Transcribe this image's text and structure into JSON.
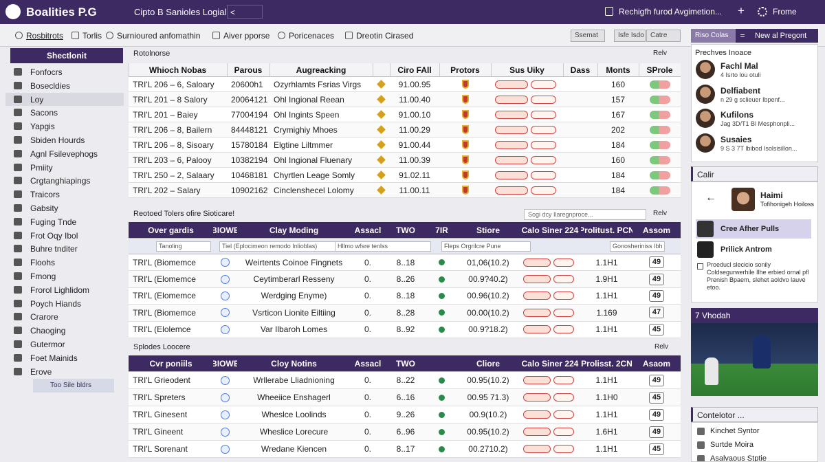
{
  "topbar": {
    "logo": "Boalities P.G",
    "title": "Cipto B Sanioles Logial",
    "search": "<",
    "notice": "Rechigfh furod Avgimetion...",
    "add": "+",
    "user": "Frome"
  },
  "tabs": [
    "Rosbitrots",
    "Torlis",
    "Surnioured anfomathin",
    "Aiver pporse",
    "Poricenaces",
    "Dreotin Cirased"
  ],
  "toolbar": [
    "Ssemat",
    "Isfe Isdo",
    "Catre"
  ],
  "sidebar": {
    "button": "Shectlonit",
    "items": [
      "Fonfocrs",
      "Bosecldies",
      "Loy",
      "Sacons",
      "Yapgis",
      "Sbiden Hourds",
      "Agnl Fsilevephogs",
      "Pmiity",
      "Crgtanghiapings",
      "Traicors",
      "Gabsity",
      "Fuging Tnde",
      "Frot Oqy Ibol",
      "Buhre tnditer",
      "Floohs",
      "Fmong",
      "Frorol Lighlidom",
      "Poych Hiands",
      "Crarore",
      "Chaoging",
      "Gutermor",
      "Foet Mainids",
      "Erove"
    ],
    "footer": "Too Sile bldrs"
  },
  "section1": {
    "title": "Rotolnorse",
    "action": "Relv",
    "headers": [
      "Whioch Nobas",
      "Parous",
      "Augreacking",
      "Ciro FAll",
      "Protors",
      "Sus Uiky",
      "Dass",
      "Monts",
      "SProle"
    ],
    "rows": [
      [
        "TRI'L 206 – 6, Saloary",
        "20600h1",
        "Ozyrhlamts Fsrias Virgs",
        "91.00.95",
        "160"
      ],
      [
        "TRI'L 201 – 8 Salory",
        "20064121",
        "Ohl Ingional Reean",
        "11.00.40",
        "157"
      ],
      [
        "TRI'L 201 – Baiey",
        "77004194",
        "Ohl Ingints Speen",
        "91.00.10",
        "167"
      ],
      [
        "TRI'L 206 – 8, Bailern",
        "84448121",
        "Crymighiy Mhoes",
        "11.00.29",
        "202"
      ],
      [
        "TRI'L 206 – 8, Sisoary",
        "15780184",
        "Elgtine Liltmmer",
        "91.00.44",
        "184"
      ],
      [
        "TRI'L 203 – 6, Palooy",
        "10382194",
        "Ohl Ingional Fluenary",
        "11.00.39",
        "160"
      ],
      [
        "TRI'L 250 – 2, Salaary",
        "10468181",
        "Chyrtlen Leage Somly",
        "91.02.11",
        "184"
      ],
      [
        "TRI'L 202 – Salary",
        "10902162",
        "Cinclenshecel Lolomy",
        "11.00.11",
        "184"
      ]
    ]
  },
  "section2": {
    "title": "Reotoed Tolers ofire Sioticare!",
    "search": "Sogi dcy Ilaregnproce...",
    "action": "Relv",
    "headers": [
      "Over gardis",
      "BIOWE",
      "Clay Moding",
      "Assacl",
      "TWO",
      "7IR",
      "Stiore",
      "Calo Siner 224",
      "Prolitust. PCN",
      "Assom"
    ],
    "filters": [
      "Tanoling",
      "Tiel (Eplocimeon remodo Inlioblas)",
      "Hllmo wfsre tenlss",
      "Fleps Orgrilcre Pune",
      "Gonosheriniss Ibh"
    ],
    "rows": [
      [
        "TRI'L (Biomemce",
        "Weirtents Coinoe Fingnets",
        "0.",
        "8..18",
        "01,06(10.2)",
        "1.1H1",
        "49"
      ],
      [
        "TRI'L (Elomemce",
        "Ceytimberarl Resseny",
        "0.",
        "8..26",
        "00.9?40.2)",
        "1.9H1",
        "49"
      ],
      [
        "TRI'L (Elomemce",
        "Werdging Enyme)",
        "0.",
        "8..18",
        "00.96(10.2)",
        "1.1H1",
        "49"
      ],
      [
        "TRI'L (Biomemce",
        "Vsrticon Lionite Eiltiing",
        "0.",
        "8..28",
        "00.00(10.2)",
        "1.169",
        "47"
      ],
      [
        "TRI'L (Elolemce",
        "Var Ilbaroh Lomes",
        "0.",
        "8..92",
        "00.9?18.2)",
        "1.1H1",
        "45"
      ]
    ]
  },
  "section3": {
    "title": "Splodes Loocere",
    "action": "Relv",
    "headers": [
      "Cvr poniils",
      "BIOWE",
      "Cloy Notins",
      "Assacl",
      "TWO",
      "Cliore",
      "Calo Siner 224",
      "Prolisst. 2CN",
      "Asaom"
    ],
    "rows": [
      [
        "TRI'L Grieodent",
        "Wrllerabe Lliadnioning",
        "0.",
        "8..22",
        "00.95(10.2)",
        "1.1H1",
        "49"
      ],
      [
        "TRI'L Spreters",
        "Wheeiice Enshagerl",
        "0.",
        "6..16",
        "00.95 71.3)",
        "1.1H0",
        "45"
      ],
      [
        "TRI'L Ginesent",
        "Wheslce Loolinds",
        "0.",
        "9..26",
        "00.9(10.2)",
        "1.1H1",
        "49"
      ],
      [
        "TRI'L Gineent",
        "Wheslice Lorecure",
        "0.",
        "6..96",
        "00.95(10.2)",
        "1.6H1",
        "49"
      ],
      [
        "TRI'L Sorenant",
        "Wredane Kiencen",
        "0.",
        "8..17",
        "00.2710.2)",
        "1.1H1",
        "45"
      ]
    ]
  },
  "right": {
    "tab": "Riso Colas",
    "eq": "=",
    "new": "New al Pregont",
    "people_title": "Prechves Inoace",
    "people": [
      {
        "name": "Fachl Mal",
        "sub": "4 Isrto lou otuli"
      },
      {
        "name": "Delfiabent",
        "sub": "n 29 g sclieuer Ibpenf..."
      },
      {
        "name": "Kufilons",
        "sub": "Jag 3D/T1 Bl Mesphonpli..."
      },
      {
        "name": "Susaies",
        "sub": "9 S 3 7T lbibod Isolsisillon..."
      }
    ],
    "chat_title": "Calir",
    "back": "←",
    "contact": {
      "name": "Haimi",
      "sub": "Tofihonigeh Hoiloss"
    },
    "highlight": "Cree Afher Pulls",
    "second": "Prilick Antrom",
    "note": "Proeducl slecicio sonily Coldsegurwerhile Ilhe erbied ornal pfl Prenish Bpaem, slehet aoldvo lauve etoo.",
    "media_title": "7 Vhodah",
    "list_title": "Contelotor ...",
    "list": [
      "Kinchet Syntor",
      "Surtde Moira",
      "Asalvaous Stptie"
    ]
  }
}
